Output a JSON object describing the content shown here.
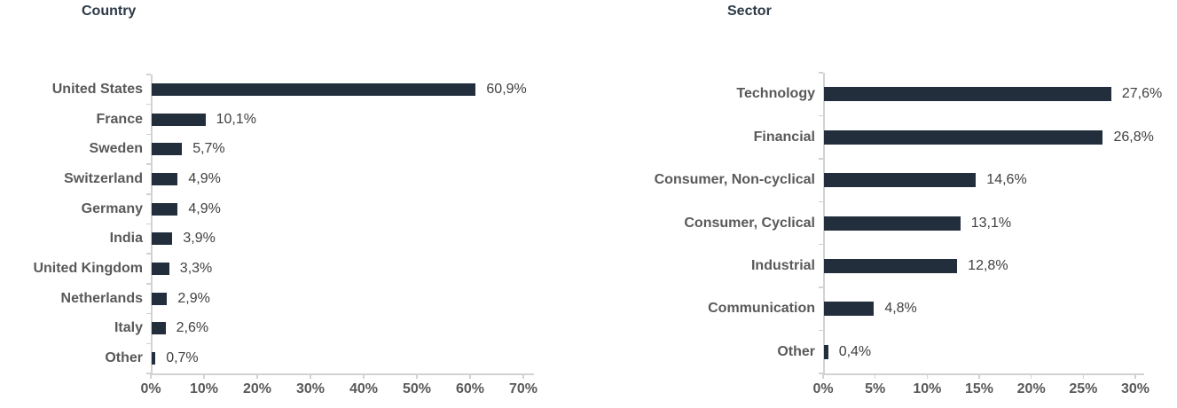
{
  "page": {
    "background": "#ffffff"
  },
  "style": {
    "bar_color": "#222e3c",
    "title_color": "#2c3947",
    "category_label_color": "#595959",
    "value_label_color": "#404040",
    "axis_color": "#d2d2d2",
    "tick_label_color": "#595959"
  },
  "chart_data": [
    {
      "type": "bar",
      "orientation": "horizontal",
      "title": "Country",
      "categories": [
        "United States",
        "France",
        "Sweden",
        "Switzerland",
        "Germany",
        "India",
        "United Kingdom",
        "Netherlands",
        "Italy",
        "Other"
      ],
      "values": [
        60.9,
        10.1,
        5.7,
        4.9,
        4.9,
        3.9,
        3.3,
        2.9,
        2.6,
        0.7
      ],
      "value_labels": [
        "60,9%",
        "10,1%",
        "5,7%",
        "4,9%",
        "4,9%",
        "3,9%",
        "3,3%",
        "2,9%",
        "2,6%",
        "0,7%"
      ],
      "xlabel": "",
      "ylabel": "",
      "axis": {
        "min": 0,
        "max": 70,
        "step": 10,
        "tick_labels": [
          "0%",
          "10%",
          "20%",
          "30%",
          "40%",
          "50%",
          "60%",
          "70%"
        ]
      },
      "grid": false,
      "legend": "none",
      "data_labels": true
    },
    {
      "type": "bar",
      "orientation": "horizontal",
      "title": "Sector",
      "categories": [
        "Technology",
        "Financial",
        "Consumer, Non-cyclical",
        "Consumer, Cyclical",
        "Industrial",
        "Communication",
        "Other"
      ],
      "values": [
        27.6,
        26.8,
        14.6,
        13.1,
        12.8,
        4.8,
        0.4
      ],
      "value_labels": [
        "27,6%",
        "26,8%",
        "14,6%",
        "13,1%",
        "12,8%",
        "4,8%",
        "0,4%"
      ],
      "xlabel": "",
      "ylabel": "",
      "axis": {
        "min": 0,
        "max": 30,
        "step": 5,
        "tick_labels": [
          "0%",
          "5%",
          "10%",
          "15%",
          "20%",
          "25%",
          "30%"
        ]
      },
      "grid": false,
      "legend": "none",
      "data_labels": true
    }
  ]
}
